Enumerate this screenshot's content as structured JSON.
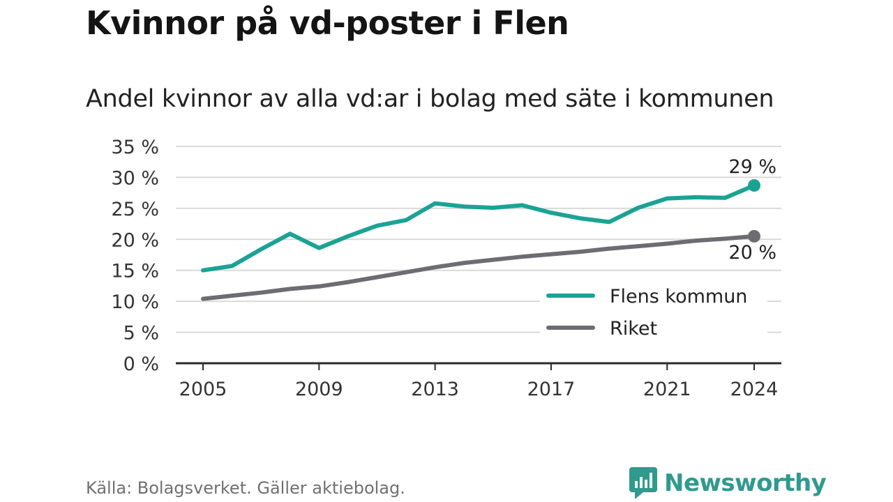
{
  "title": "Kvinnor på vd-poster i Flen",
  "subtitle": "Andel kvinnor av alla vd:ar i bolag med säte i kommunen",
  "source": "Källa: Bolagsverket. Gäller aktiebolag.",
  "brand": "Newsworthy",
  "chart_data": {
    "type": "line",
    "x": [
      2005,
      2006,
      2007,
      2008,
      2009,
      2010,
      2011,
      2012,
      2013,
      2014,
      2015,
      2016,
      2017,
      2018,
      2019,
      2020,
      2021,
      2022,
      2023,
      2024
    ],
    "x_ticks": [
      "2005",
      "2009",
      "2013",
      "2017",
      "2021",
      "2024"
    ],
    "y_ticks": [
      "0 %",
      "5 %",
      "10 %",
      "15 %",
      "20 %",
      "25 %",
      "30 %",
      "35 %"
    ],
    "ylim": [
      0,
      35
    ],
    "grid": true,
    "legend_position": "bottom-right",
    "series": [
      {
        "name": "Flens kommun",
        "color": "#1aa394",
        "values": [
          15.0,
          15.7,
          18.4,
          20.9,
          18.6,
          20.5,
          22.2,
          23.1,
          25.8,
          25.3,
          25.1,
          25.5,
          24.3,
          23.4,
          22.8,
          25.1,
          26.6,
          26.8,
          26.7,
          28.7
        ],
        "end_label": "29 %"
      },
      {
        "name": "Riket",
        "color": "#6d6c72",
        "values": [
          10.4,
          10.9,
          11.4,
          12.0,
          12.4,
          13.1,
          13.9,
          14.7,
          15.5,
          16.2,
          16.7,
          17.2,
          17.6,
          18.0,
          18.5,
          18.9,
          19.3,
          19.8,
          20.1,
          20.5
        ],
        "end_label": "20 %"
      }
    ]
  }
}
